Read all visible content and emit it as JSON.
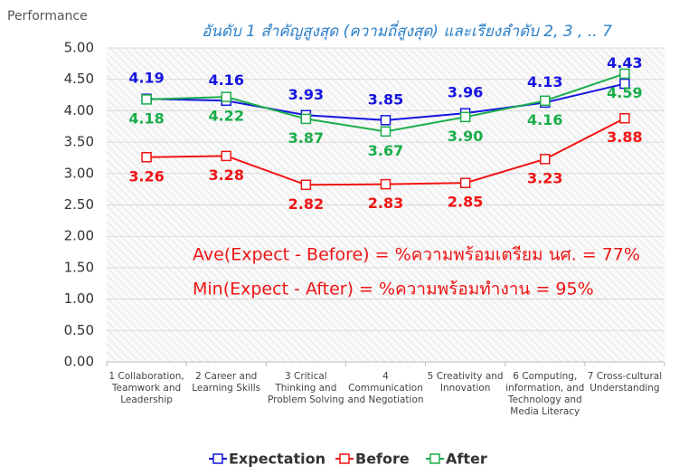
{
  "chart_data": {
    "type": "line",
    "title": "อันดับ 1 สำคัญสูงสุด (ความถี่สูงสุด) และเรียงลำดับ 2, 3 , .. 7",
    "y_label": "Performance",
    "categories": [
      "1 Collaboration, Teamwork and Leadership",
      "2 Career and Learning Skills",
      "3 Critical Thinking and Problem Solving",
      "4 Communication and Negotiation",
      "5 Creativity and Innovation",
      "6 Computing, information, and Technology and Media Literacy",
      "7 Cross-cultural Understanding"
    ],
    "series": [
      {
        "name": "Expectation",
        "color": "#1515e0",
        "values": [
          4.19,
          4.16,
          3.93,
          3.85,
          3.96,
          4.13,
          4.43
        ],
        "value_labels": [
          "4.19",
          "4.16",
          "3.93",
          "3.85",
          "3.96",
          "4.13",
          "4.43"
        ]
      },
      {
        "name": "Before",
        "color": "#f01414",
        "values": [
          3.26,
          3.28,
          2.82,
          2.83,
          2.85,
          3.23,
          3.88
        ],
        "value_labels": [
          "3.26",
          "3.28",
          "2.82",
          "2.83",
          "2.85",
          "3.23",
          "3.88"
        ]
      },
      {
        "name": "After",
        "color": "#1aae4a",
        "values": [
          4.18,
          4.22,
          3.87,
          3.67,
          3.9,
          4.16,
          4.59
        ],
        "value_labels": [
          "4.18",
          "4.22",
          "3.87",
          "3.67",
          "3.90",
          "4.16",
          "4.59"
        ]
      }
    ],
    "ylim": [
      0,
      5
    ],
    "yticks": [
      {
        "value": 0,
        "label": "0.00"
      },
      {
        "value": 0.5,
        "label": "0.50"
      },
      {
        "value": 1,
        "label": "1.00"
      },
      {
        "value": 1.5,
        "label": "1.50"
      },
      {
        "value": 2,
        "label": "2.00"
      },
      {
        "value": 2.5,
        "label": "2.50"
      },
      {
        "value": 3,
        "label": "3.00"
      },
      {
        "value": 3.5,
        "label": "3.50"
      },
      {
        "value": 4,
        "label": "4.00"
      },
      {
        "value": 4.5,
        "label": "4.50"
      },
      {
        "value": 5,
        "label": "5.00"
      }
    ],
    "annotations": [
      "Ave(Expect - Before) = %ความพร้อมเตรียม นศ. = 77%",
      "Min(Expect - After) = %ความพร้อมทำงาน = 95%"
    ],
    "legend": "bottom"
  }
}
